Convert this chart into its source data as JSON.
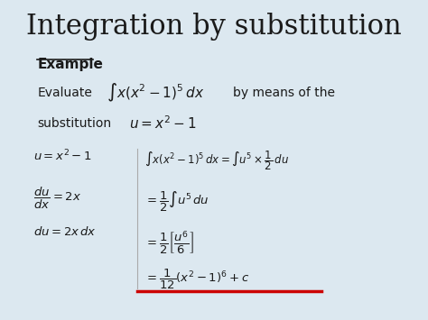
{
  "title": "Integration by substitution",
  "background_color": "#dce8f0",
  "title_fontsize": 22,
  "title_color": "#1a1a1a",
  "text_color": "#1a1a1a",
  "red_line_color": "#cc0000",
  "example_label": "Example",
  "evaluate_text": "Evaluate",
  "by_means_text": "by means of the",
  "substitution_text": "substitution",
  "integral_formula": "$\\int x(x^2-1)^5\\,dx$",
  "sub_formula": "$u = x^2 - 1$",
  "left_line1": "$u = x^2 - 1$",
  "left_line2": "$\\dfrac{du}{dx} = 2x$",
  "left_line3": "$du = 2x\\,dx$",
  "right_line1": "$\\int x(x^2-1)^5\\,dx = \\int u^5 \\times \\dfrac{1}{2}\\,du$",
  "right_line2": "$= \\dfrac{1}{2}\\int u^5\\,du$",
  "right_line3": "$= \\dfrac{1}{2}\\left[\\dfrac{u^6}{6}\\right]$",
  "right_line4": "$= \\dfrac{1}{12}(x^2-1)^6 + c$",
  "sep_line_color": "#aaaaaa"
}
